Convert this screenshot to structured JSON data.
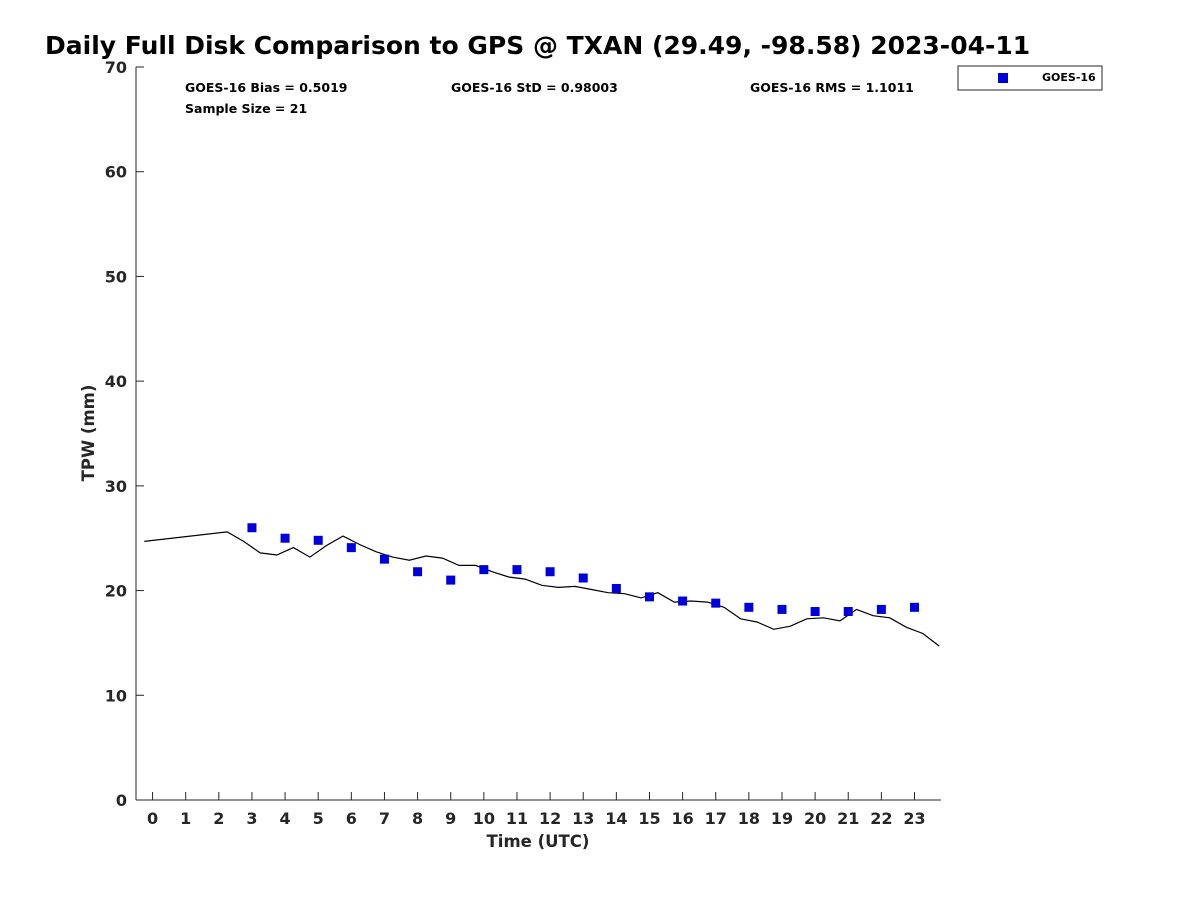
{
  "chart_data": {
    "type": "scatter",
    "title": "Daily Full Disk Comparison to GPS @ TXAN (29.49, -98.58) 2023-04-11",
    "xlabel": "Time (UTC)",
    "ylabel": "TPW (mm)",
    "xlim": [
      -0.5,
      23.8
    ],
    "ylim": [
      0,
      70
    ],
    "x_ticks": [
      "0",
      "1",
      "2",
      "3",
      "4",
      "5",
      "6",
      "7",
      "8",
      "9",
      "10",
      "11",
      "12",
      "13",
      "14",
      "15",
      "16",
      "17",
      "18",
      "19",
      "20",
      "21",
      "22",
      "23"
    ],
    "y_ticks": [
      "0",
      "10",
      "20",
      "30",
      "40",
      "50",
      "60",
      "70"
    ],
    "stats": {
      "bias": "GOES-16 Bias = 0.5019",
      "std": "GOES-16 StD = 0.98003",
      "rms": "GOES-16 RMS = 1.1011",
      "sample": "Sample Size = 21"
    },
    "legend": {
      "position": "top-right-outside",
      "label": "GOES-16"
    },
    "series": [
      {
        "name": "GOES-16",
        "kind": "scatter",
        "color": "#0000dd",
        "x": [
          3,
          4,
          5,
          6,
          7,
          8,
          9,
          10,
          11,
          12,
          13,
          14,
          15,
          16,
          17,
          18,
          19,
          20,
          21,
          22,
          23
        ],
        "y": [
          26.0,
          25.0,
          24.8,
          24.1,
          23.0,
          21.8,
          21.0,
          22.0,
          22.0,
          21.8,
          21.2,
          20.2,
          19.4,
          19.0,
          18.8,
          18.4,
          18.2,
          18.0,
          18.0,
          18.2,
          18.4
        ]
      },
      {
        "kind": "line",
        "color": "#000000",
        "x": [
          -0.25,
          2.25,
          2.75,
          3.25,
          3.75,
          4.25,
          4.75,
          5.25,
          5.75,
          6.25,
          6.75,
          7.25,
          7.75,
          8.25,
          8.75,
          9.25,
          9.75,
          10.25,
          10.75,
          11.25,
          11.75,
          12.25,
          12.75,
          13.25,
          13.75,
          14.25,
          14.75,
          15.25,
          15.75,
          16.25,
          16.75,
          17.25,
          17.75,
          18.25,
          18.75,
          19.25,
          19.75,
          20.25,
          20.75,
          21.25,
          21.75,
          22.25,
          22.75,
          23.25,
          23.75
        ],
        "y": [
          24.7,
          25.6,
          24.7,
          23.6,
          23.4,
          24.1,
          23.2,
          24.3,
          25.2,
          24.4,
          23.7,
          23.2,
          22.9,
          23.3,
          23.1,
          22.4,
          22.4,
          21.8,
          21.3,
          21.1,
          20.5,
          20.3,
          20.4,
          20.1,
          19.8,
          19.7,
          19.3,
          19.8,
          18.9,
          19.0,
          18.9,
          18.4,
          17.3,
          17.0,
          16.3,
          16.6,
          17.3,
          17.4,
          17.1,
          18.2,
          17.6,
          17.4,
          16.5,
          15.9,
          14.7
        ]
      }
    ]
  }
}
